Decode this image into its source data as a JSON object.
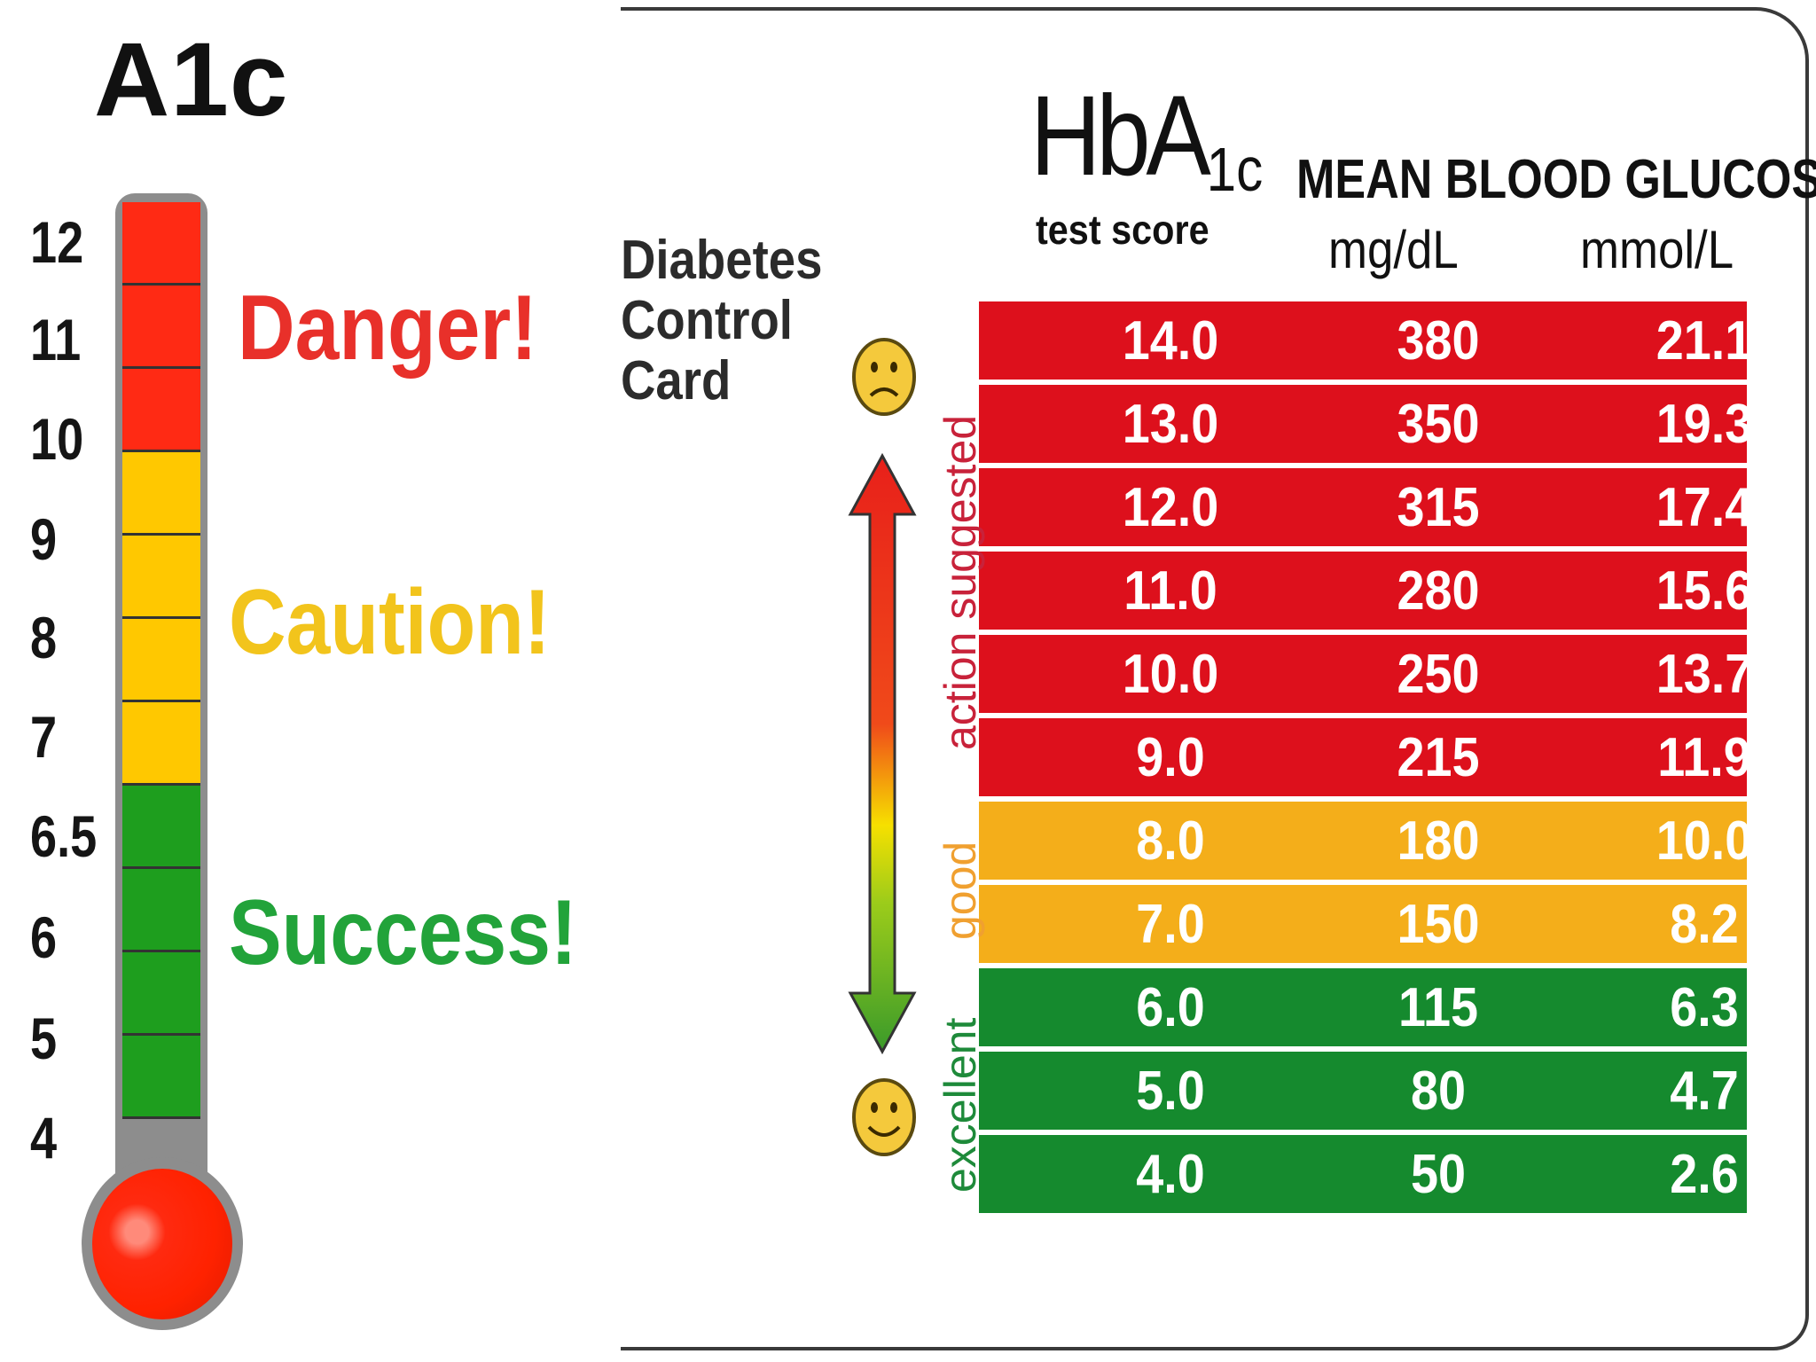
{
  "thermometer": {
    "title": "A1c",
    "tick_labels": [
      "12",
      "11",
      "10",
      "9",
      "8",
      "7",
      "6.5",
      "6",
      "5",
      "4"
    ],
    "zones": [
      {
        "label": "Danger!",
        "color": "#e8302a"
      },
      {
        "label": "Caution!",
        "color": "#f2c41c"
      },
      {
        "label": "Success!",
        "color": "#22a33a"
      }
    ],
    "segment_colors": [
      "#ff2a14",
      "#ff2a14",
      "#ff2a14",
      "#ffc800",
      "#ffc800",
      "#ffc800",
      "#ffc800",
      "#1e9e1e",
      "#1e9e1e",
      "#1e9e1e",
      "#1e9e1e"
    ]
  },
  "card": {
    "title_lines": [
      "Diabetes",
      "Control",
      "Card"
    ],
    "hba_main": "HbA",
    "hba_sub": "1c",
    "test_score": "test score",
    "mean_blood_glucose": "MEAN BLOOD GLUCOSE",
    "unit_mg": "mg/dL",
    "unit_mmol": "mmol/L",
    "band_labels": [
      {
        "text": "action suggested",
        "color": "#c8223a"
      },
      {
        "text": "good",
        "color": "#f0a030"
      },
      {
        "text": "excellent",
        "color": "#1e8a3a"
      }
    ],
    "face_icons": [
      "sad-face-icon",
      "happy-face-icon"
    ],
    "arrow_icon": "double-arrow-icon",
    "row_colors": {
      "red": "#dd101c",
      "orange": "#f4ae1a",
      "green": "#158a2e"
    }
  },
  "chart_data": {
    "type": "table",
    "columns": [
      "HbA1c test score",
      "mg/dL",
      "mmol/L"
    ],
    "rows": [
      {
        "hba1c": "14.0",
        "mg_dl": "380",
        "mmol_l": "21.1",
        "band": "red"
      },
      {
        "hba1c": "13.0",
        "mg_dl": "350",
        "mmol_l": "19.3",
        "band": "red"
      },
      {
        "hba1c": "12.0",
        "mg_dl": "315",
        "mmol_l": "17.4",
        "band": "red"
      },
      {
        "hba1c": "11.0",
        "mg_dl": "280",
        "mmol_l": "15.6",
        "band": "red"
      },
      {
        "hba1c": "10.0",
        "mg_dl": "250",
        "mmol_l": "13.7",
        "band": "red"
      },
      {
        "hba1c": "9.0",
        "mg_dl": "215",
        "mmol_l": "11.9",
        "band": "red"
      },
      {
        "hba1c": "8.0",
        "mg_dl": "180",
        "mmol_l": "10.0",
        "band": "orange"
      },
      {
        "hba1c": "7.0",
        "mg_dl": "150",
        "mmol_l": "8.2",
        "band": "orange"
      },
      {
        "hba1c": "6.0",
        "mg_dl": "115",
        "mmol_l": "6.3",
        "band": "green"
      },
      {
        "hba1c": "5.0",
        "mg_dl": "80",
        "mmol_l": "4.7",
        "band": "green"
      },
      {
        "hba1c": "4.0",
        "mg_dl": "50",
        "mmol_l": "2.6",
        "band": "green"
      }
    ]
  }
}
